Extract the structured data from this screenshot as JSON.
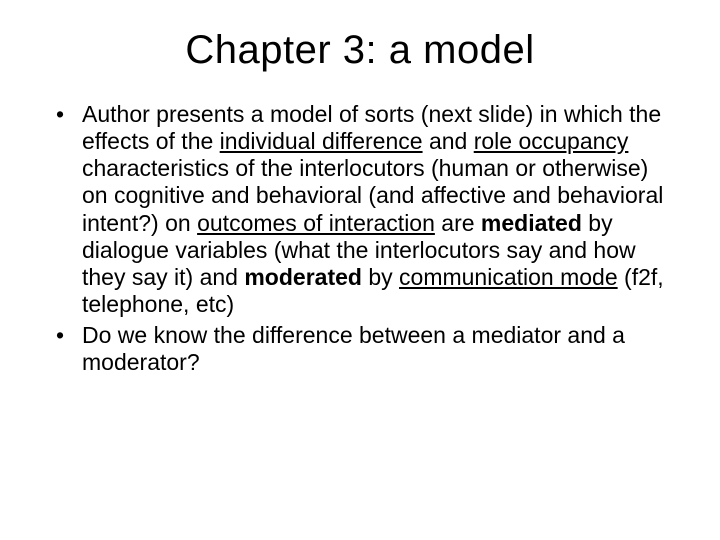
{
  "title": "Chapter 3:  a model",
  "bullets": [
    {
      "segments": [
        {
          "t": "Author presents a model of sorts (next slide) in which the effects of the "
        },
        {
          "t": "individual difference",
          "u": true
        },
        {
          "t": " and "
        },
        {
          "t": "role occupancy",
          "u": true
        },
        {
          "t": " characteristics of the interlocutors (human or otherwise) on cognitive and behavioral (and affective and behavioral intent?) on "
        },
        {
          "t": "outcomes of interaction",
          "u": true
        },
        {
          "t": " are "
        },
        {
          "t": "mediated",
          "b": true
        },
        {
          "t": " by dialogue variables (what the interlocutors say and how they say it) and "
        },
        {
          "t": "moderated",
          "b": true
        },
        {
          "t": " by "
        },
        {
          "t": "communication mode",
          "u": true
        },
        {
          "t": " (f2f, telephone, etc)"
        }
      ]
    },
    {
      "segments": [
        {
          "t": "Do we know the difference between a mediator and a moderator?"
        }
      ]
    }
  ]
}
